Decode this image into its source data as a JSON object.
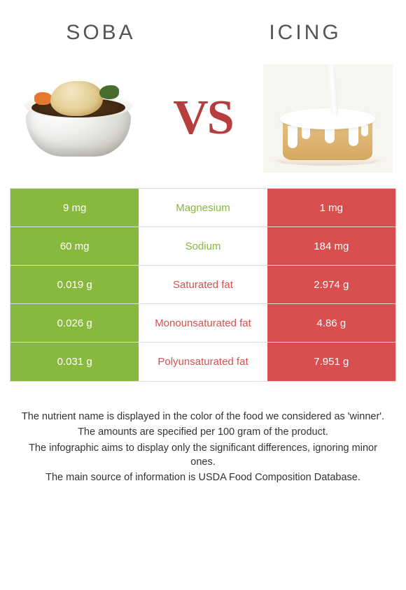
{
  "header": {
    "left_title": "Soba",
    "right_title": "Icing",
    "vs_label": "VS"
  },
  "colors": {
    "soba": "#88b83e",
    "icing": "#d94f4f",
    "row_border": "#dcdcdc",
    "mid_green": "#88b83e",
    "mid_red": "#d94f4f"
  },
  "rows": [
    {
      "left": "9 mg",
      "mid": "Magnesium",
      "right": "1 mg",
      "winner": "left"
    },
    {
      "left": "60 mg",
      "mid": "Sodium",
      "right": "184 mg",
      "winner": "left"
    },
    {
      "left": "0.019 g",
      "mid": "Saturated fat",
      "right": "2.974 g",
      "winner": "right"
    },
    {
      "left": "0.026 g",
      "mid": "Monounsaturated fat",
      "right": "4.86 g",
      "winner": "right"
    },
    {
      "left": "0.031 g",
      "mid": "Polyunsaturated fat",
      "right": "7.951 g",
      "winner": "right"
    }
  ],
  "footnotes": [
    "The nutrient name is displayed in the color of the food we considered as 'winner'.",
    "The amounts are specified per 100 gram of the product.",
    "The infographic aims to display only the significant differences, ignoring minor ones.",
    "The main source of information is USDA Food Composition Database."
  ]
}
